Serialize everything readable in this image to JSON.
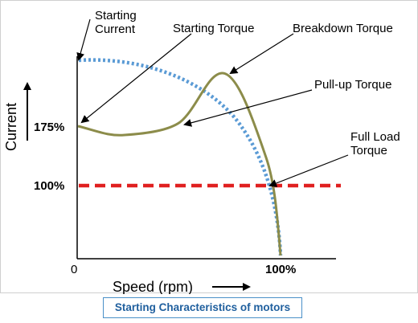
{
  "labels": {
    "starting_current": [
      "Starting",
      "Current"
    ],
    "starting_torque": "Starting Torque",
    "breakdown_torque": "Breakdown Torque",
    "pullup_torque": "Pull-up Torque",
    "full_load_torque": [
      "Full Load",
      "Torque"
    ],
    "tick_175": "175%",
    "tick_100": "100%",
    "origin": "0",
    "x_100": "100%",
    "y_axis_title": "Current",
    "x_axis_title": "Speed (rpm)"
  },
  "caption": "Starting Characteristics of motors",
  "colors": {
    "current_curve": "#5b9bd5",
    "torque_curve": "#8c8c4a",
    "full_load_line": "#e02020",
    "caption_text": "#1f5f9e",
    "caption_border": "#4a90c8"
  }
}
